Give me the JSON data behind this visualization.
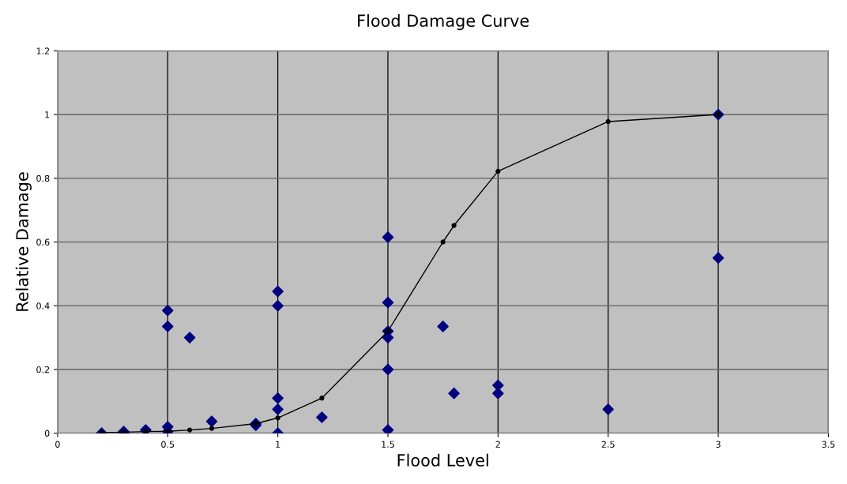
{
  "chart_data": {
    "type": "scatter",
    "title": "Flood Damage Curve",
    "xlabel": "Flood Level",
    "ylabel": "Relative Damage",
    "series": [
      {
        "color": "#000080",
        "marker": "diamond",
        "x": [
          0.2,
          0.3,
          0.3,
          0.4,
          0.5,
          0.5,
          0.5,
          0.5,
          0.6,
          0.7,
          0.9,
          0.9,
          1.0,
          1.0,
          1.0,
          1.0,
          1.0,
          1.2,
          1.5,
          1.5,
          1.5,
          1.5,
          1.5,
          1.5,
          1.75,
          1.8,
          2.0,
          2.0,
          2.5,
          3.0,
          3.0
        ],
        "values": [
          0,
          0.005,
          0,
          0.01,
          0.385,
          0.335,
          0.02,
          0.005,
          0.3,
          0.037,
          0.03,
          0.025,
          0.445,
          0.4,
          0.11,
          0.075,
          0,
          0.05,
          0.615,
          0.41,
          0.32,
          0.3,
          0.2,
          0.01,
          0.335,
          0.125,
          0.15,
          0.125,
          0.075,
          1.0,
          0.55
        ]
      },
      {
        "type": "line",
        "color": "#000000",
        "marker": "circle",
        "x": [
          0.2,
          0.3,
          0.4,
          0.5,
          0.6,
          0.7,
          0.9,
          1.0,
          1.2,
          1.5,
          1.75,
          1.8,
          2.0,
          2.5,
          3.0
        ],
        "values": [
          0.002,
          0.003,
          0.005,
          0.006,
          0.01,
          0.015,
          0.03,
          0.048,
          0.11,
          0.32,
          0.6,
          0.652,
          0.822,
          0.978,
          1.0
        ]
      }
    ],
    "xlim": [
      0,
      3.5
    ],
    "xticks": [
      0,
      0.5,
      1,
      1.5,
      2,
      2.5,
      3,
      3.5
    ],
    "ylim": [
      0,
      1.2
    ],
    "yticks": [
      0,
      0.2,
      0.4,
      0.6,
      0.8,
      1,
      1.2
    ],
    "grid": true
  }
}
